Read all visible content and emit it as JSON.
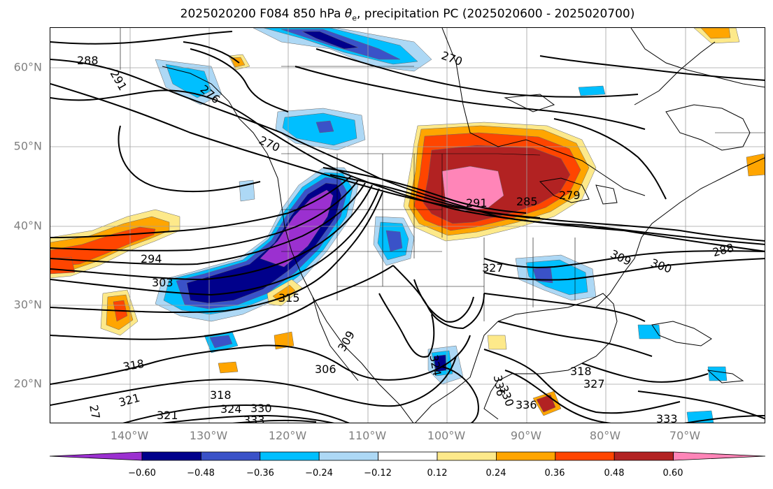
{
  "title_prefix": "2025020200 F084 850 hPa ",
  "title_symbol": "θ",
  "title_subscript": "e",
  "title_suffix": ", precipitation PC (2025020600 - 2025020700)",
  "latitude_labels": [
    "60°N",
    "50°N",
    "40°N",
    "30°N",
    "20°N"
  ],
  "longitude_labels": [
    "140°W",
    "130°W",
    "120°W",
    "110°W",
    "100°W",
    "90°W",
    "80°W",
    "70°W"
  ],
  "colorbar": {
    "ticks": [
      "−0.60",
      "−0.48",
      "−0.36",
      "−0.24",
      "−0.12",
      "0.12",
      "0.24",
      "0.36",
      "0.48",
      "0.60"
    ],
    "colors": [
      "#9b30d0",
      "#00008b",
      "#3a52c8",
      "#00bfff",
      "#add8f5",
      "#ffffff",
      "#fde98a",
      "#ffa500",
      "#ff4500",
      "#b22222",
      "#ff85b8"
    ]
  },
  "contour_labels": [
    {
      "text": "288"
    },
    {
      "text": "291"
    },
    {
      "text": "276"
    },
    {
      "text": "270"
    },
    {
      "text": "270"
    },
    {
      "text": "294"
    },
    {
      "text": "303"
    },
    {
      "text": "315"
    },
    {
      "text": "309"
    },
    {
      "text": "306"
    },
    {
      "text": "318"
    },
    {
      "text": "321"
    },
    {
      "text": "321"
    },
    {
      "text": "318"
    },
    {
      "text": "324"
    },
    {
      "text": "330"
    },
    {
      "text": "333"
    },
    {
      "text": "327"
    },
    {
      "text": "291"
    },
    {
      "text": "285"
    },
    {
      "text": "279"
    },
    {
      "text": "309"
    },
    {
      "text": "300"
    },
    {
      "text": "288"
    },
    {
      "text": "318"
    },
    {
      "text": "327"
    },
    {
      "text": "333"
    },
    {
      "text": "336"
    },
    {
      "text": "336"
    },
    {
      "text": "330"
    },
    {
      "text": "324"
    },
    {
      "text": "27"
    }
  ]
}
